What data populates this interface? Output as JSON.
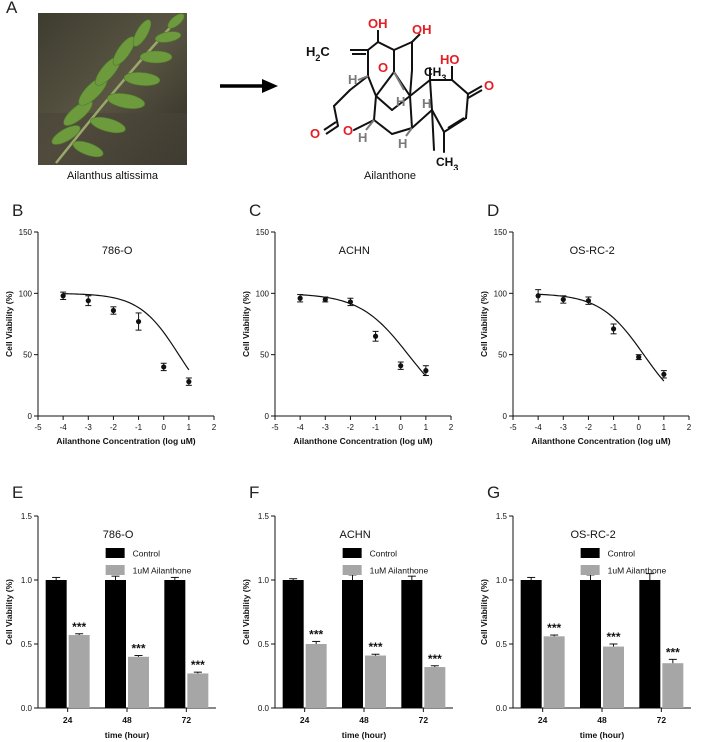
{
  "panel_a": {
    "letter": "A",
    "plant_caption": "Ailanthus altissima",
    "compound_caption": "Ailanthone",
    "structure_labels": {
      "oh_top": "OH",
      "oh_right": "OH",
      "ho": "HO",
      "h2c": "H2C",
      "ch3_top": "CH3",
      "ch3_bottom": "CH3",
      "o_bridge": "O",
      "o_ring": "O",
      "o_carbonyl_left": "O",
      "o_carbonyl_right": "O",
      "h_a": "H",
      "h_b": "H",
      "h_c": "H",
      "h_d": "H",
      "h_e": "H"
    },
    "colors": {
      "heteroatom": "#e31e24",
      "bond": "#111111",
      "hydrogen": "#7a7a7a"
    }
  },
  "chart_data": [
    {
      "id": "B",
      "letter": "B",
      "type": "scatter",
      "title": "786-O",
      "xlabel": "Ailanthone Concentration (log uM)",
      "ylabel": "Cell Viability (%)",
      "xlim": [
        -5,
        2
      ],
      "ylim": [
        0,
        150
      ],
      "xticks": [
        "-5",
        "-4",
        "-3",
        "-2",
        "-1",
        "0",
        "1",
        "2"
      ],
      "yticks": [
        "0",
        "50",
        "100",
        "150"
      ],
      "x": [
        -4,
        -3,
        -2,
        -1,
        0,
        1
      ],
      "y": [
        98,
        94,
        86,
        77,
        40,
        28
      ],
      "err": [
        3,
        4,
        3,
        7,
        3,
        3
      ],
      "curve": {
        "top": 100,
        "bottom": 0,
        "log_ic50": 0.6,
        "hill": -0.55,
        "xrange": [
          -4,
          1
        ]
      },
      "grid": false
    },
    {
      "id": "C",
      "letter": "C",
      "type": "scatter",
      "title": "ACHN",
      "xlabel": "Ailanthone Concentration (log uM)",
      "ylabel": "Cell Viability (%)",
      "xlim": [
        -5,
        2
      ],
      "ylim": [
        0,
        150
      ],
      "xticks": [
        "-5",
        "-4",
        "-3",
        "-2",
        "-1",
        "0",
        "1",
        "2"
      ],
      "yticks": [
        "0",
        "50",
        "100",
        "150"
      ],
      "x": [
        -4,
        -3,
        -2,
        -1,
        0,
        1
      ],
      "y": [
        96,
        95,
        93,
        65,
        41,
        37
      ],
      "err": [
        3,
        2,
        3,
        4,
        3,
        4
      ],
      "curve": {
        "top": 100,
        "bottom": 0,
        "log_ic50": 0.3,
        "hill": -0.45,
        "xrange": [
          -4,
          1
        ]
      },
      "grid": false
    },
    {
      "id": "D",
      "letter": "D",
      "type": "scatter",
      "title": "OS-RC-2",
      "xlabel": "Ailanthone Concentration (log uM)",
      "ylabel": "Cell Viability (%)",
      "xlim": [
        -5,
        2
      ],
      "ylim": [
        0,
        150
      ],
      "xticks": [
        "-5",
        "-4",
        "-3",
        "-2",
        "-1",
        "0",
        "1",
        "2"
      ],
      "yticks": [
        "0",
        "50",
        "100",
        "150"
      ],
      "x": [
        -4,
        -3,
        -2,
        -1,
        0,
        1
      ],
      "y": [
        98,
        95,
        94,
        71,
        48,
        34
      ],
      "err": [
        5,
        3,
        3,
        4,
        2,
        3
      ],
      "curve": {
        "top": 100,
        "bottom": 0,
        "log_ic50": 0.2,
        "hill": -0.5,
        "xrange": [
          -4,
          1
        ]
      },
      "grid": false
    },
    {
      "id": "E",
      "letter": "E",
      "type": "bar",
      "title": "786-O",
      "xlabel": "time (hour)",
      "ylabel": "Cell Viability (%)",
      "ylim": [
        0,
        1.5
      ],
      "yticks": [
        "0.0",
        "0.5",
        "1.0",
        "1.5"
      ],
      "categories": [
        "24",
        "48",
        "72"
      ],
      "series": [
        {
          "name": "Control",
          "color": "#000000",
          "values": [
            1.0,
            1.0,
            1.0
          ],
          "err": [
            0.02,
            0.03,
            0.02
          ]
        },
        {
          "name": "1uM Ailanthone",
          "color": "#a6a6a6",
          "values": [
            0.57,
            0.4,
            0.27
          ],
          "err": [
            0.01,
            0.01,
            0.01
          ]
        }
      ],
      "annotations": [
        "***",
        "***",
        "***"
      ],
      "legend": "top-right"
    },
    {
      "id": "F",
      "letter": "F",
      "type": "bar",
      "title": "ACHN",
      "xlabel": "time (hour)",
      "ylabel": "Cell Viability (%)",
      "ylim": [
        0,
        1.5
      ],
      "yticks": [
        "0.0",
        "0.5",
        "1.0",
        "1.5"
      ],
      "categories": [
        "24",
        "48",
        "72"
      ],
      "series": [
        {
          "name": "Control",
          "color": "#000000",
          "values": [
            1.0,
            1.0,
            1.0
          ],
          "err": [
            0.01,
            0.04,
            0.03
          ]
        },
        {
          "name": "1uM Ailanthone",
          "color": "#a6a6a6",
          "values": [
            0.5,
            0.41,
            0.32
          ],
          "err": [
            0.02,
            0.01,
            0.01
          ]
        }
      ],
      "annotations": [
        "***",
        "***",
        "***"
      ],
      "legend": "top-right"
    },
    {
      "id": "G",
      "letter": "G",
      "type": "bar",
      "title": "OS-RC-2",
      "xlabel": "time (hour)",
      "ylabel": "Cell Viability (%)",
      "ylim": [
        0,
        1.5
      ],
      "yticks": [
        "0.0",
        "0.5",
        "1.0",
        "1.5"
      ],
      "categories": [
        "24",
        "48",
        "72"
      ],
      "series": [
        {
          "name": "Control",
          "color": "#000000",
          "values": [
            1.0,
            1.0,
            1.0
          ],
          "err": [
            0.02,
            0.04,
            0.05
          ]
        },
        {
          "name": "1uM Ailanthone",
          "color": "#a6a6a6",
          "values": [
            0.56,
            0.48,
            0.35
          ],
          "err": [
            0.01,
            0.02,
            0.03
          ]
        }
      ],
      "annotations": [
        "***",
        "***",
        "***"
      ],
      "legend": "top-right"
    }
  ]
}
